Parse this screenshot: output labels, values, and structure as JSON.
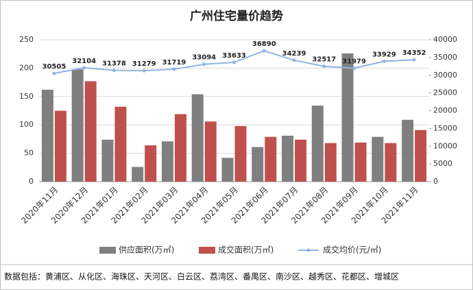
{
  "chart_data": {
    "type": "bar",
    "title": "广州住宅量价趋势",
    "categories": [
      "2020年11月",
      "2020年12月",
      "2021年01月",
      "2021年02月",
      "2021年03月",
      "2021年04月",
      "2021年05月",
      "2021年06月",
      "2021年07月",
      "2021年08月",
      "2021年09月",
      "2021年10月",
      "2021年11月"
    ],
    "series": [
      {
        "name": "供应面积(万㎡)",
        "color": "#7f7f7f",
        "values": [
          162,
          198,
          74,
          26,
          71,
          154,
          42,
          61,
          81,
          134,
          226,
          79,
          109
        ]
      },
      {
        "name": "成交面积(万㎡)",
        "color": "#c0504d",
        "values": [
          125,
          177,
          132,
          64,
          119,
          106,
          98,
          79,
          74,
          68,
          69,
          68,
          91
        ]
      },
      {
        "name": "成交均价(元/㎡)",
        "color": "#8eb4e3",
        "type": "line",
        "axis": "y2",
        "values": [
          30505,
          32104,
          31378,
          31279,
          31719,
          33094,
          33633,
          36890,
          34239,
          32517,
          31979,
          33929,
          34352
        ]
      }
    ],
    "ylim": [
      0,
      250
    ],
    "yticks": [
      0,
      50,
      100,
      150,
      200,
      250
    ],
    "y2lim": [
      0,
      40000
    ],
    "y2ticks": [
      0,
      5000,
      10000,
      15000,
      20000,
      25000,
      30000,
      35000,
      40000
    ],
    "grid": true,
    "legend": "bottom",
    "note": "数据包括：黄浦区、从化区、海珠区、天河区、白云区、荔湾区、番禺区、南沙区、越秀区、花都区、增城区"
  }
}
